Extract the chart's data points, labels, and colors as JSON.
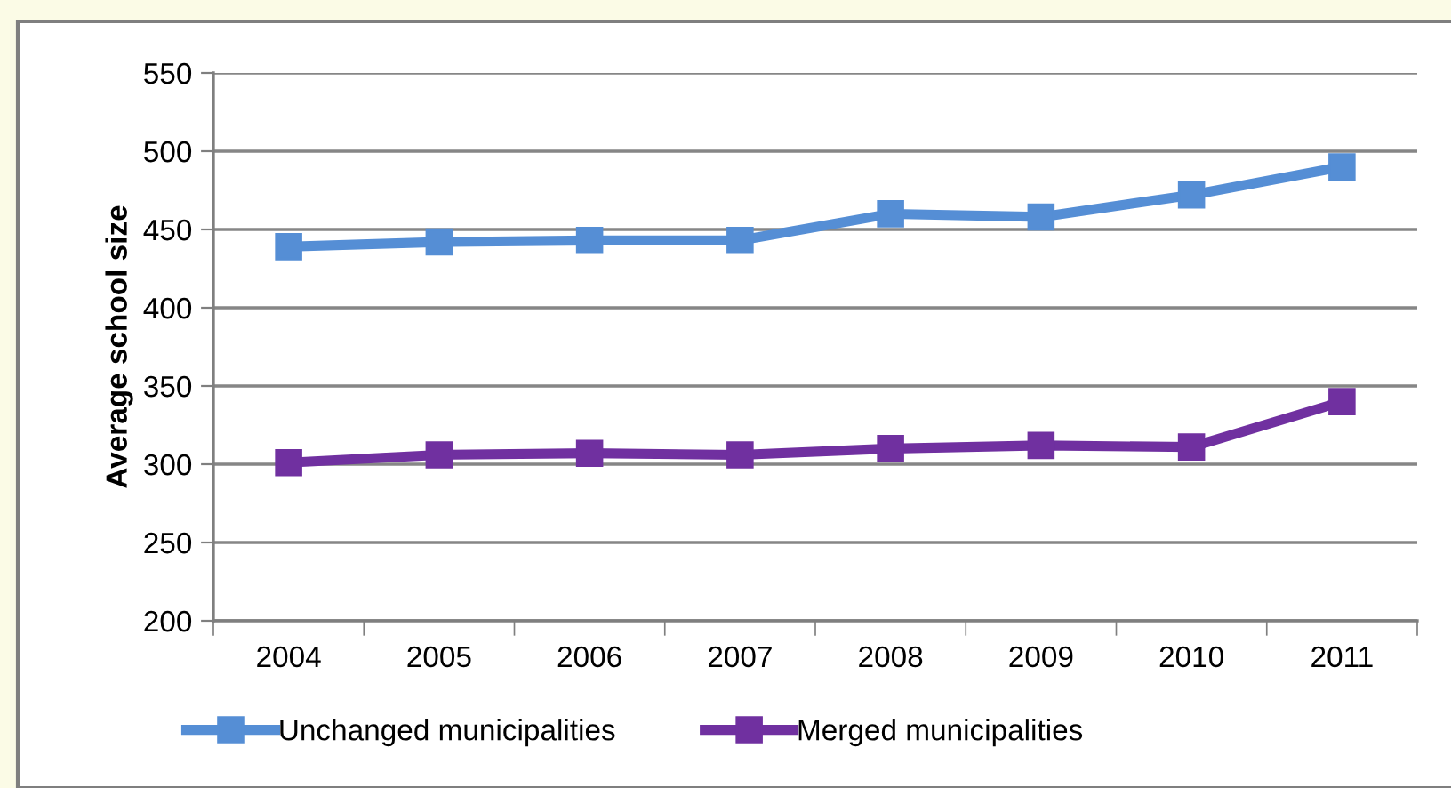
{
  "chart_data": {
    "type": "line",
    "ylabel": "Average school size",
    "categories": [
      "2004",
      "2005",
      "2006",
      "2007",
      "2008",
      "2009",
      "2010",
      "2011"
    ],
    "series": [
      {
        "name": "Unchanged municipalities",
        "color": "#558ed5",
        "values": [
          439,
          442,
          443,
          443,
          460,
          458,
          472,
          490
        ]
      },
      {
        "name": "Merged municipalities",
        "color": "#7030a0",
        "values": [
          301,
          306,
          307,
          306,
          310,
          312,
          311,
          340
        ]
      }
    ],
    "ylim": [
      200,
      550
    ],
    "yticks": [
      200,
      250,
      300,
      350,
      400,
      450,
      500,
      550
    ],
    "grid": "y",
    "legend": "bottom",
    "marker": "square",
    "line_style": "solid"
  }
}
